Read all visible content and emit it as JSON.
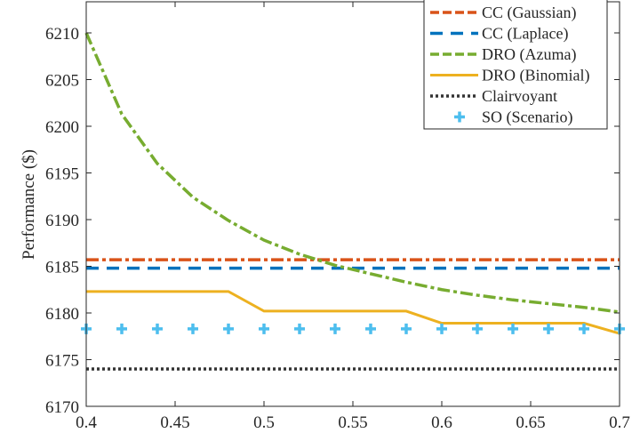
{
  "chart_data": {
    "type": "line",
    "title": "",
    "xlabel": "",
    "ylabel": "Performance ($)",
    "xlim": [
      0.4,
      0.7
    ],
    "ylim": [
      6170,
      6213
    ],
    "xticks": [
      0.4,
      0.45,
      0.5,
      0.55,
      0.6,
      0.65,
      0.7
    ],
    "xtick_labels": [
      "0.4",
      "0.45",
      "0.5",
      "0.55",
      "0.6",
      "0.65",
      "0.7"
    ],
    "yticks": [
      6170,
      6175,
      6180,
      6185,
      6190,
      6195,
      6200,
      6205,
      6210
    ],
    "ytick_labels": [
      "6170",
      "6175",
      "6180",
      "6185",
      "6190",
      "6195",
      "6200",
      "6205",
      "6210"
    ],
    "grid": false,
    "legend_position": "top-right",
    "series": [
      {
        "name": "CC (Gaussian)",
        "color": "#D95319",
        "style": "dashdot",
        "x": [
          0.4,
          0.7
        ],
        "y": [
          6185.7,
          6185.7
        ]
      },
      {
        "name": "CC (Laplace)",
        "color": "#0072BD",
        "style": "dashed",
        "x": [
          0.4,
          0.7
        ],
        "y": [
          6184.8,
          6184.8
        ]
      },
      {
        "name": "DRO (Azuma)",
        "color": "#77AC30",
        "style": "dashdot",
        "x": [
          0.4,
          0.42,
          0.44,
          0.46,
          0.48,
          0.5,
          0.52,
          0.54,
          0.56,
          0.58,
          0.6,
          0.62,
          0.64,
          0.66,
          0.68,
          0.7
        ],
        "y": [
          6210,
          6201.3,
          6196,
          6192.4,
          6189.9,
          6187.8,
          6186.3,
          6185.1,
          6184.2,
          6183.3,
          6182.5,
          6181.9,
          6181.4,
          6181,
          6180.6,
          6180.1
        ]
      },
      {
        "name": "DRO (Binomial)",
        "color": "#EDB120",
        "style": "solid",
        "x": [
          0.4,
          0.48,
          0.5,
          0.58,
          0.6,
          0.68,
          0.7
        ],
        "y": [
          6182.3,
          6182.3,
          6180.2,
          6180.2,
          6178.9,
          6178.9,
          6177.8
        ]
      },
      {
        "name": "Clairvoyant",
        "color": "#333333",
        "style": "dotted",
        "x": [
          0.4,
          0.7
        ],
        "y": [
          6174.0,
          6174.0
        ]
      },
      {
        "name": "SO (Scenario)",
        "color": "#4DBEEE",
        "style": "marker-plus",
        "x": [
          0.4,
          0.42,
          0.44,
          0.46,
          0.48,
          0.5,
          0.52,
          0.54,
          0.56,
          0.58,
          0.6,
          0.62,
          0.64,
          0.66,
          0.68,
          0.7
        ],
        "y": [
          6178.3,
          6178.3,
          6178.3,
          6178.3,
          6178.3,
          6178.3,
          6178.3,
          6178.3,
          6178.3,
          6178.3,
          6178.3,
          6178.3,
          6178.3,
          6178.3,
          6178.3,
          6178.3
        ]
      }
    ]
  }
}
